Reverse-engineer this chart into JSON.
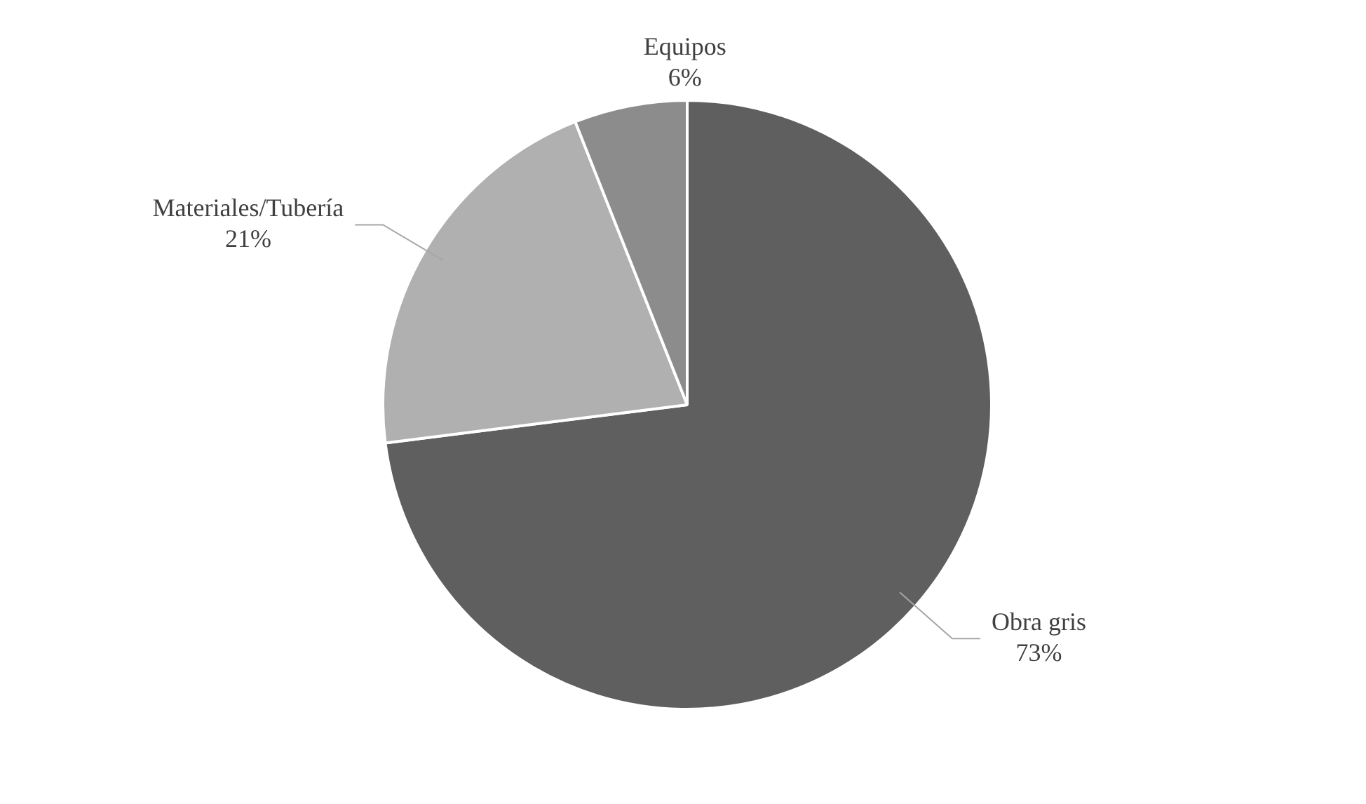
{
  "chart_data": {
    "type": "pie",
    "categories": [
      "Obra gris",
      "Materiales/Tubería",
      "Equipos"
    ],
    "values": [
      73,
      21,
      6
    ],
    "colors": [
      "#5f5f5f",
      "#b0b0b0",
      "#8c8c8c"
    ],
    "value_labels": [
      "73%",
      "21%",
      "6%"
    ],
    "legend": false
  }
}
